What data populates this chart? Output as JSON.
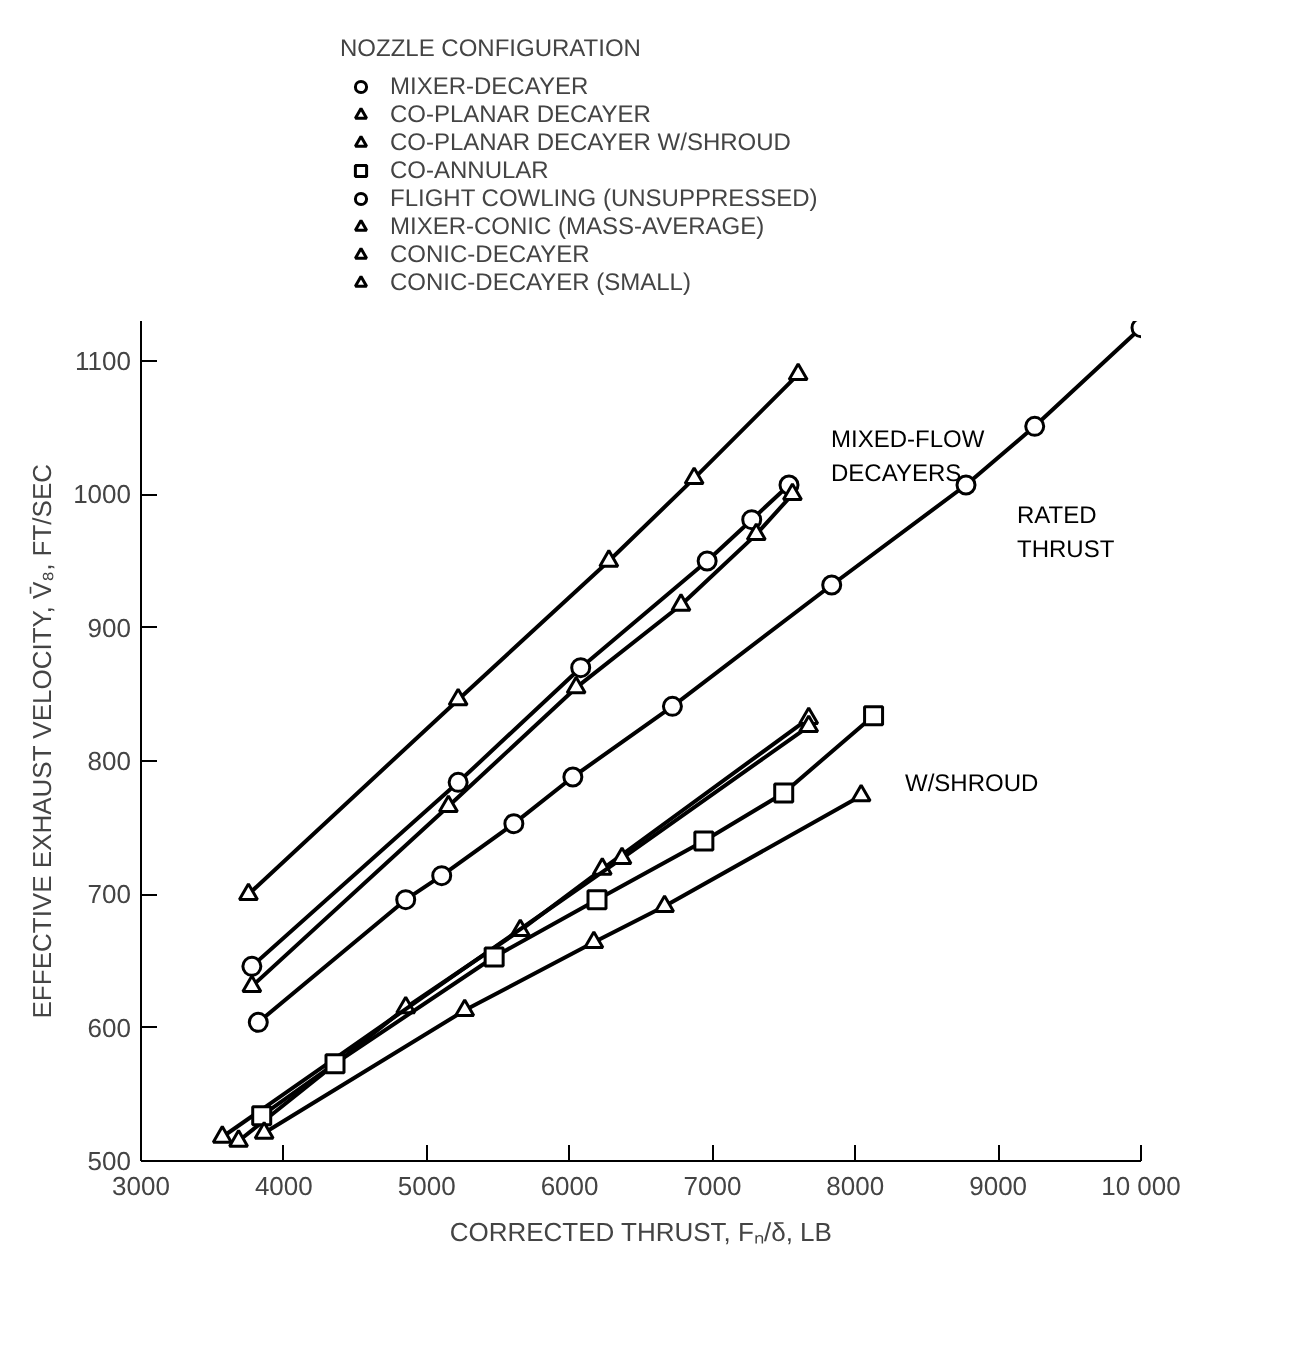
{
  "chart_data": {
    "type": "line",
    "xlabel": "CORRECTED THRUST, Fₙ/δ, LB",
    "ylabel": "EFFECTIVE EXHAUST VELOCITY, V̄₈, FT/SEC",
    "legend_title": "NOZZLE CONFIGURATION",
    "legend": "top",
    "grid": false,
    "line_style": "solid",
    "xlim": [
      3000,
      10000
    ],
    "ylim": [
      500,
      1130
    ],
    "xticks": [
      3000,
      4000,
      5000,
      6000,
      7000,
      8000,
      9000,
      {
        "value": 10000,
        "label": "10 000"
      }
    ],
    "yticks": [
      500,
      600,
      700,
      800,
      900,
      1000,
      1100
    ],
    "series": [
      {
        "name": "MIXER-DECAYER",
        "color": "#000000",
        "marker": "circle",
        "x": [
          3776,
          5220,
          6078,
          6963,
          7275,
          7536
        ],
        "values": [
          646,
          784,
          870,
          950,
          981,
          1007
        ]
      },
      {
        "name": "CO-PLANAR DECAYER",
        "color": "#000000",
        "marker": "triangle",
        "x": [
          3683,
          4853,
          5655,
          6229,
          7674
        ],
        "values": [
          515,
          615,
          673,
          719,
          832
        ]
      },
      {
        "name": "CO-PLANAR DECAYER W/SHROUD",
        "color": "#000000",
        "marker": "triangle",
        "x": [
          3569,
          6367,
          7674
        ],
        "values": [
          518,
          727,
          826
        ]
      },
      {
        "name": "CO-ANNULAR",
        "color": "#000000",
        "marker": "square",
        "x": [
          3845,
          4358,
          5472,
          6192,
          6940,
          7499,
          8128
        ],
        "values": [
          534,
          573,
          653,
          696,
          740,
          776,
          834
        ]
      },
      {
        "name": "FLIGHT COWLING (UNSUPPRESSED)",
        "color": "#000000",
        "marker": "circle",
        "x": [
          3821,
          4853,
          5105,
          5610,
          6023,
          6720,
          7835,
          8775,
          9256,
          10000
        ],
        "values": [
          604,
          696,
          714,
          753,
          788,
          841,
          932,
          1007,
          1051,
          1125
        ]
      },
      {
        "name": "MIXER-CONIC (MASS-AVERAGE)",
        "color": "#000000",
        "marker": "triangle",
        "x": [
          3862,
          5266,
          6170,
          6665,
          8041
        ],
        "values": [
          521,
          613,
          664,
          691,
          774
        ]
      },
      {
        "name": "CONIC-DECAYER",
        "color": "#000000",
        "marker": "triangle",
        "x": [
          3776,
          5152,
          6046,
          6780,
          7307,
          7560
        ],
        "values": [
          631,
          766,
          855,
          917,
          970,
          1000
        ]
      },
      {
        "name": "CONIC-DECAYER (SMALL)",
        "color": "#000000",
        "marker": "triangle",
        "x": [
          3752,
          5220,
          6275,
          6872,
          7600
        ],
        "values": [
          700,
          846,
          950,
          1012,
          1090
        ]
      }
    ],
    "annotations": [
      "MIXED-FLOW DECAYERS",
      "RATED THRUST",
      "W/SHROUD"
    ]
  }
}
